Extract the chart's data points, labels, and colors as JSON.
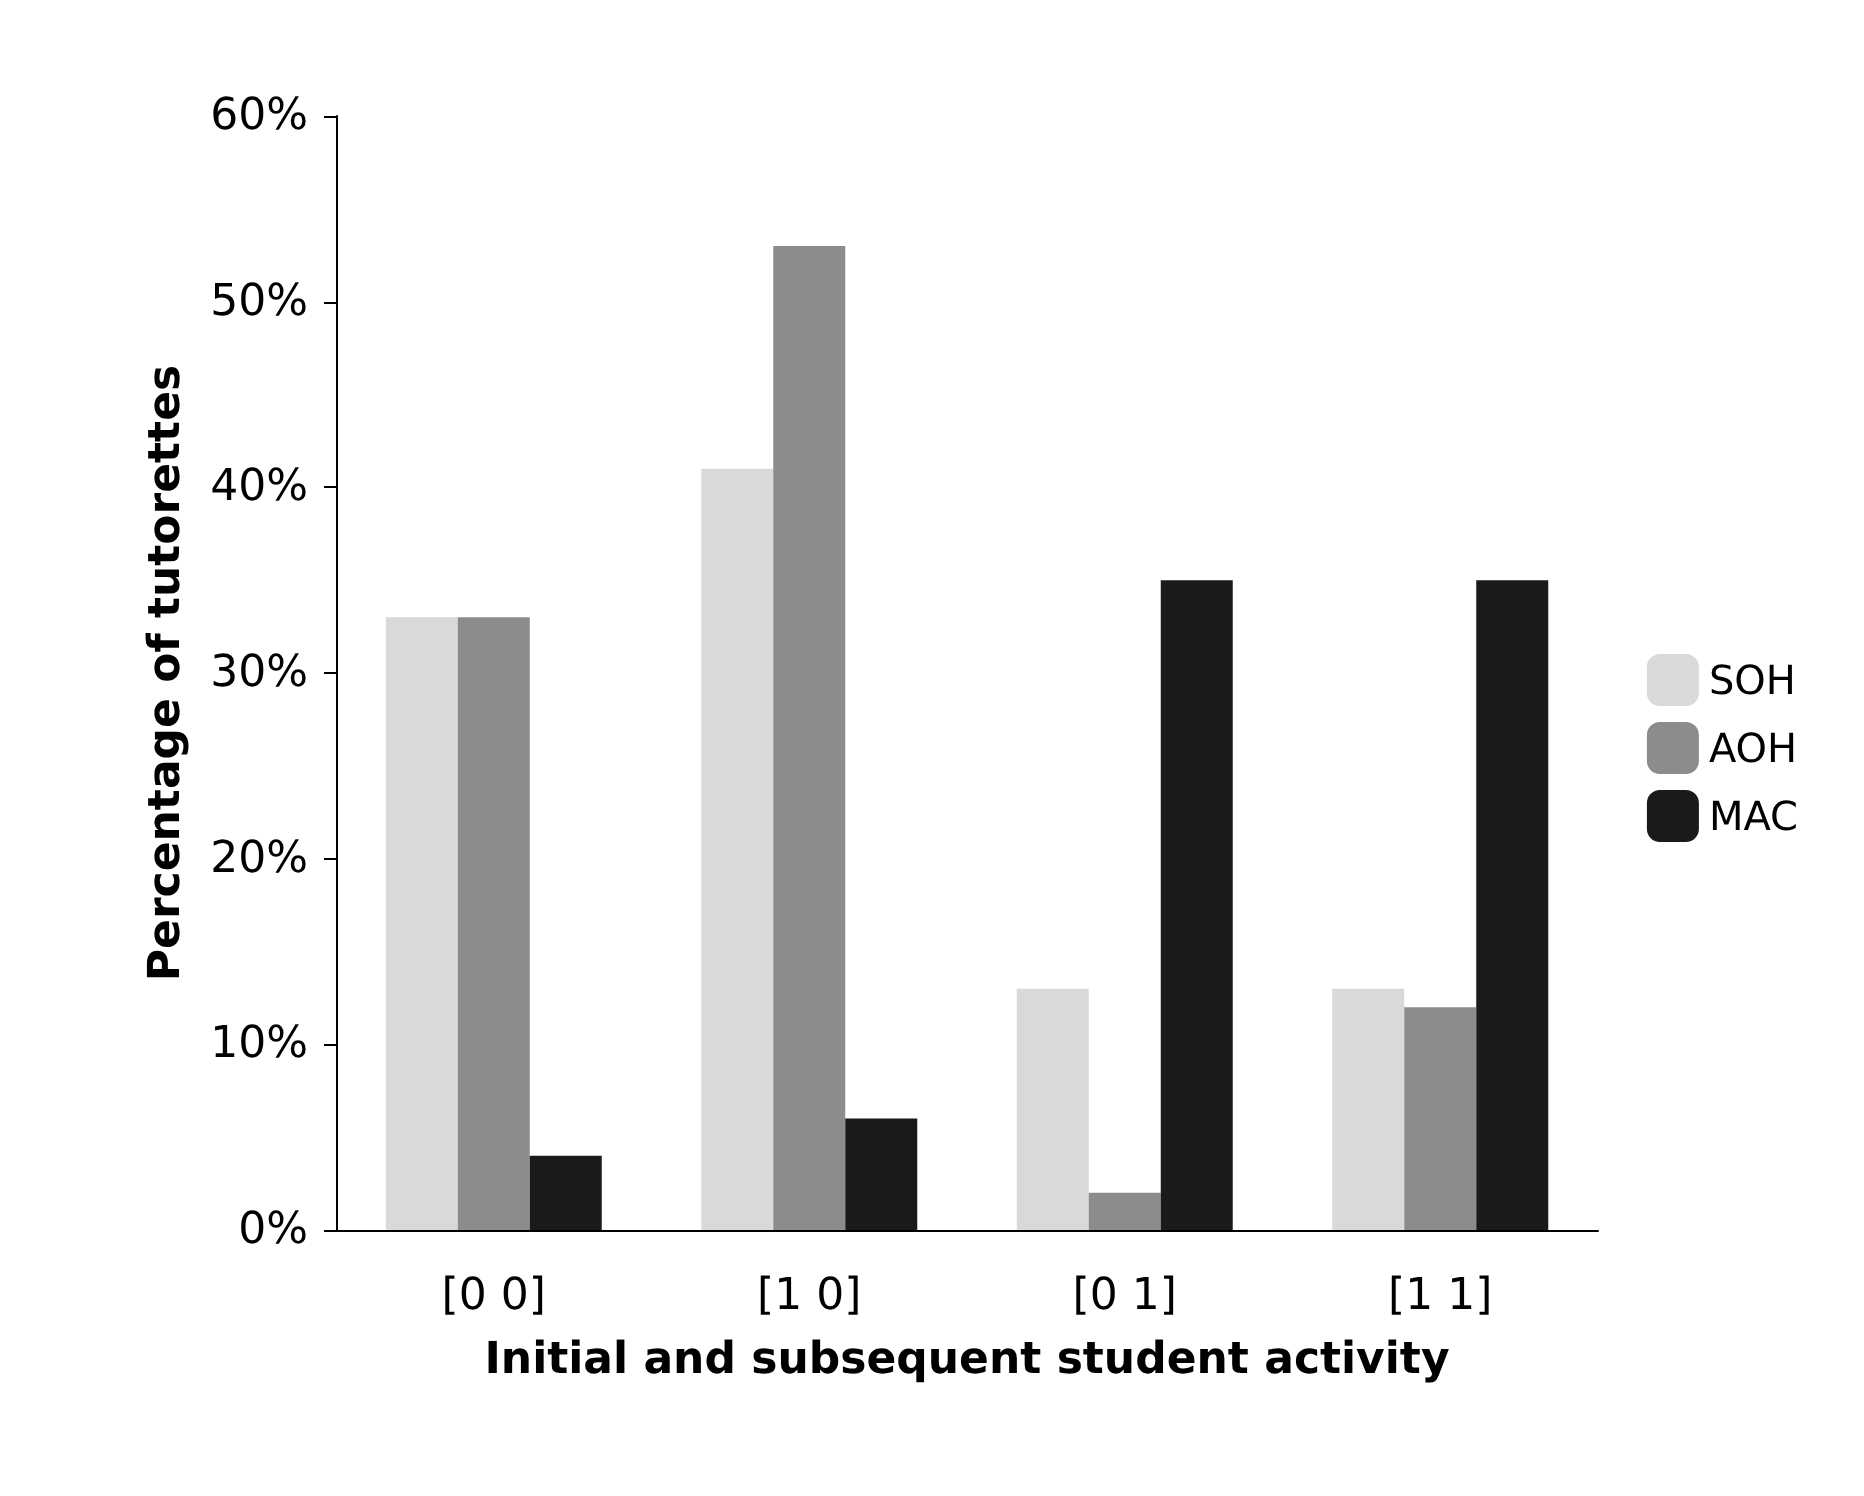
{
  "chart_data": {
    "type": "bar",
    "xlabel": "Initial and subsequent student activity",
    "ylabel": "Percentage of tutorettes",
    "categories": [
      "[0 0]",
      "[1 0]",
      "[0 1]",
      "[1 1]"
    ],
    "series": [
      {
        "name": "SOH",
        "color": "#d9d9d9",
        "values": [
          33,
          41,
          13,
          13
        ]
      },
      {
        "name": "AOH",
        "color": "#8c8c8c",
        "values": [
          33,
          53,
          2,
          12
        ]
      },
      {
        "name": "MAC",
        "color": "#1a1a1a",
        "values": [
          4,
          6,
          35,
          35
        ]
      }
    ],
    "ylim": [
      0,
      60
    ],
    "yticks": [
      {
        "value": 0,
        "label": "0%"
      },
      {
        "value": 10,
        "label": "10%"
      },
      {
        "value": 20,
        "label": "20%"
      },
      {
        "value": 30,
        "label": "30%"
      },
      {
        "value": 40,
        "label": "40%"
      },
      {
        "value": 50,
        "label": "50%"
      },
      {
        "value": 60,
        "label": "60%"
      }
    ],
    "grid": false,
    "legend": "right"
  }
}
